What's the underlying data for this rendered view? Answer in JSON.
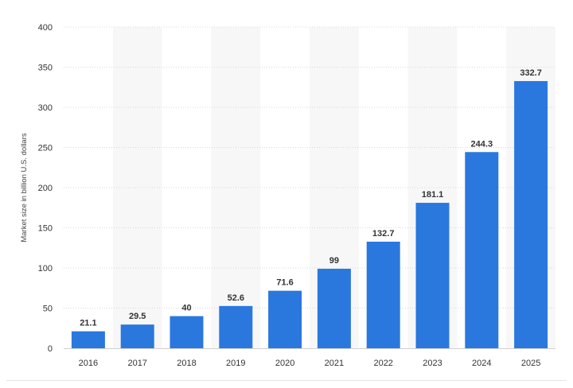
{
  "chart_data": {
    "type": "bar",
    "categories": [
      "2016",
      "2017",
      "2018",
      "2019",
      "2020",
      "2021",
      "2022",
      "2023",
      "2024",
      "2025"
    ],
    "values": [
      21.1,
      29.5,
      40,
      52.6,
      71.6,
      99,
      132.7,
      181.1,
      244.3,
      332.7
    ],
    "value_labels": [
      "21.1",
      "29.5",
      "40",
      "52.6",
      "71.6",
      "99",
      "132.7",
      "181.1",
      "244.3",
      "332.7"
    ],
    "ylabel": "Market size in billion U.S. dollars",
    "ylim": [
      0,
      400
    ],
    "yticks": [
      "0",
      "50",
      "100",
      "150",
      "200",
      "250",
      "300",
      "350",
      "400"
    ],
    "bar_color": "#2a78de",
    "grid": true,
    "alternating_column_shading": true
  }
}
